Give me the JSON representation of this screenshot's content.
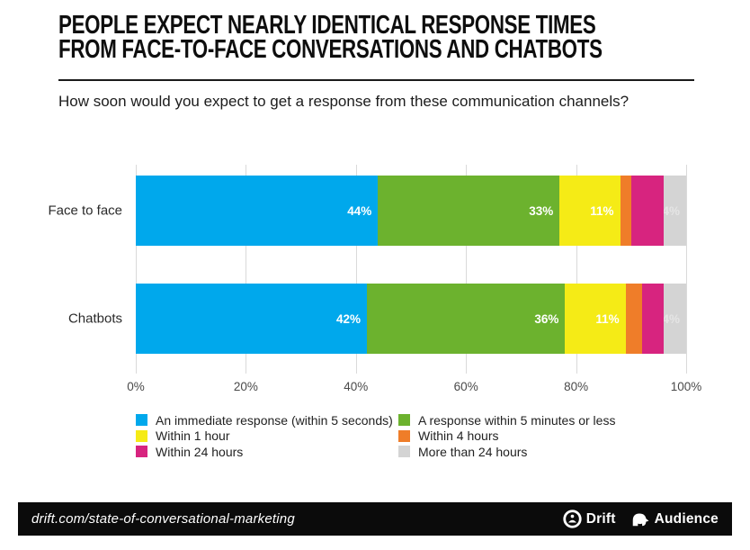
{
  "header": {
    "title_line1": "PEOPLE EXPECT NEARLY IDENTICAL RESPONSE TIMES",
    "title_line2": "FROM FACE-TO-FACE CONVERSATIONS AND CHATBOTS",
    "subtitle": "How soon would you expect to get a response from these communication channels?"
  },
  "chart_data": {
    "type": "bar",
    "orientation": "horizontal",
    "stacked": true,
    "grid": true,
    "legend_position": "bottom",
    "categories": [
      "Face to face",
      "Chatbots"
    ],
    "series": [
      {
        "name": "An immediate response (within 5 seconds)",
        "color": "#00A8EC",
        "values": [
          44,
          42
        ],
        "label_style": "solid"
      },
      {
        "name": "A response within 5 minutes or less",
        "color": "#6CB22E",
        "values": [
          33,
          36
        ],
        "label_style": "solid"
      },
      {
        "name": "Within 1 hour",
        "color": "#F5EB16",
        "values": [
          11,
          11
        ],
        "label_style": "solid"
      },
      {
        "name": "Within 4 hours",
        "color": "#EF7D29",
        "values": [
          2,
          3
        ],
        "label_style": "hidden"
      },
      {
        "name": "Within 24 hours",
        "color": "#D7247F",
        "values": [
          6,
          4
        ],
        "label_style": "hidden"
      },
      {
        "name": "More than 24 hours",
        "color": "#D4D4D4",
        "values": [
          4,
          4
        ],
        "label_style": "faint"
      }
    ],
    "x_ticks": [
      "0%",
      "20%",
      "40%",
      "60%",
      "80%",
      "100%"
    ],
    "xlim": [
      0,
      100
    ]
  },
  "footer": {
    "url": "drift.com/state-of-conversational-marketing",
    "brands": [
      {
        "label": "Drift"
      },
      {
        "label": "Audience"
      }
    ]
  }
}
